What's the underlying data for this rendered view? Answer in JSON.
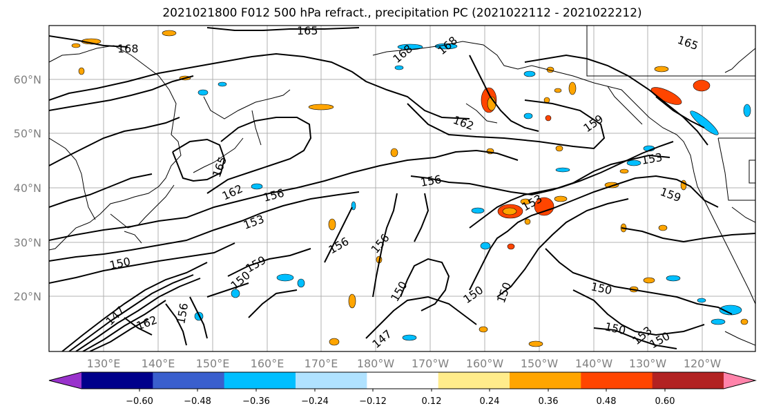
{
  "title": "2021021800 F012 500 hPa refract., precipitation PC (2021022112 - 2021022212)",
  "lat_labels": [
    "60°N",
    "50°N",
    "40°N",
    "30°N",
    "20°N"
  ],
  "lon_labels": [
    "130°E",
    "140°E",
    "150°E",
    "160°E",
    "170°E",
    "180°W",
    "170°W",
    "160°W",
    "150°W",
    "140°W",
    "130°W",
    "120°W"
  ],
  "contour_labels": [
    "165",
    "168",
    "168",
    "168",
    "165",
    "162",
    "159",
    "165",
    "162",
    "156",
    "156",
    "153",
    "153",
    "153",
    "159",
    "150",
    "156",
    "156",
    "159",
    "150",
    "150",
    "150",
    "150",
    "147",
    "156",
    "162",
    "150",
    "147",
    "153",
    "150",
    "150"
  ],
  "colorbar": {
    "ticks": [
      "−0.60",
      "−0.48",
      "−0.36",
      "−0.24",
      "−0.12",
      "0.12",
      "0.24",
      "0.36",
      "0.48",
      "0.60"
    ],
    "colors": [
      "#9932cc",
      "#00008b",
      "#3a5fcd",
      "#00bfff",
      "#b0e2ff",
      "#ffffff",
      "#ffec8b",
      "#ffa500",
      "#ff4500",
      "#b22222",
      "#ff83aa"
    ]
  }
}
